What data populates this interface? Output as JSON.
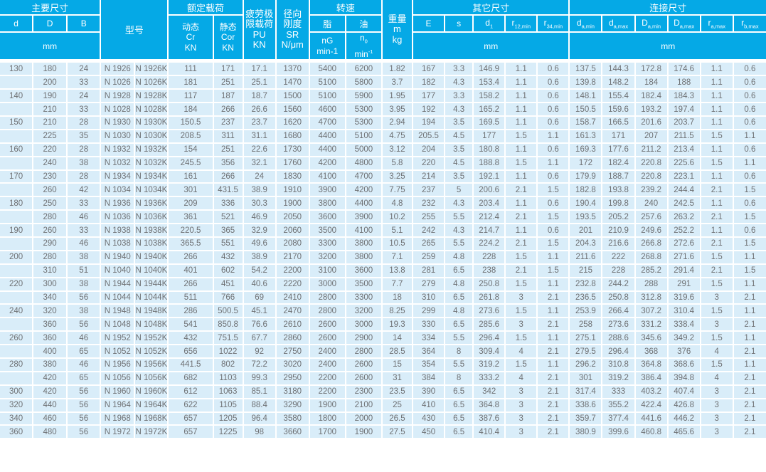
{
  "colors": {
    "header_bg": "#05a9e6",
    "header_text": "#ffffff",
    "row_bg": "#d9edf9",
    "body_text": "#6e7073",
    "gridline": "#ffffff"
  },
  "table": {
    "header": {
      "main_group": "主要尺寸",
      "d": "d",
      "D": "D",
      "B": "B",
      "mm": "mm",
      "model": "型号",
      "load_group": "额定载荷",
      "dyn": [
        "动态",
        "Cr",
        "KN"
      ],
      "stat": [
        "静态",
        "Cor",
        "KN"
      ],
      "fatigue": [
        "疲劳极",
        "限载荷",
        "PU",
        "KN"
      ],
      "stiffness": [
        "径向",
        "刚度",
        "SR",
        "N/μm"
      ],
      "speed_group": "转速",
      "grease": "脂",
      "oil": "油",
      "ng": [
        "nG",
        "min-1"
      ],
      "n0": {
        "base": "n",
        "sub": "0",
        "unit": "min",
        "sup": "-1"
      },
      "weight": [
        "重量",
        "m",
        "kg"
      ],
      "other_group": "其它尺寸",
      "e": "E",
      "s": "s",
      "d1": {
        "base": "d",
        "sub": "1"
      },
      "r12": {
        "base": "r",
        "sub": "12,min"
      },
      "r34": {
        "base": "r",
        "sub": "34,min"
      },
      "connect_group": "连接尺寸",
      "da_min": {
        "base": "d",
        "sub": "a,min"
      },
      "da_max": {
        "base": "d",
        "sub": "a,max"
      },
      "Da_min": {
        "base": "D",
        "sub": "a,min"
      },
      "Da_max": {
        "base": "D",
        "sub": "a,max"
      },
      "ra_max": {
        "base": "r",
        "sub": "a,max"
      },
      "rb_max": {
        "base": "r",
        "sub": "b,max"
      }
    },
    "rows": [
      [
        "130",
        "180",
        "24",
        "N 1926",
        "N 1926K",
        "111",
        "171",
        "17.1",
        "1370",
        "5400",
        "6200",
        "1.82",
        "167",
        "3.3",
        "146.9",
        "1.1",
        "0.6",
        "137.5",
        "144.3",
        "172.8",
        "174.6",
        "1.1",
        "0.6"
      ],
      [
        "",
        "200",
        "33",
        "N 1026",
        "N 1026K",
        "181",
        "251",
        "25.1",
        "1470",
        "5100",
        "5800",
        "3.7",
        "182",
        "4.3",
        "153.4",
        "1.1",
        "0.6",
        "139.8",
        "148.2",
        "184",
        "188",
        "1.1",
        "0.6"
      ],
      [
        "140",
        "190",
        "24",
        "N 1928",
        "N 1928K",
        "117",
        "187",
        "18.7",
        "1500",
        "5100",
        "5900",
        "1.95",
        "177",
        "3.3",
        "158.2",
        "1.1",
        "0.6",
        "148.1",
        "155.4",
        "182.4",
        "184.3",
        "1.1",
        "0.6"
      ],
      [
        "",
        "210",
        "33",
        "N 1028",
        "N 1028K",
        "184",
        "266",
        "26.6",
        "1560",
        "4600",
        "5300",
        "3.95",
        "192",
        "4.3",
        "165.2",
        "1.1",
        "0.6",
        "150.5",
        "159.6",
        "193.2",
        "197.4",
        "1.1",
        "0.6"
      ],
      [
        "150",
        "210",
        "28",
        "N 1930",
        "N 1930K",
        "150.5",
        "237",
        "23.7",
        "1620",
        "4700",
        "5300",
        "2.94",
        "194",
        "3.5",
        "169.5",
        "1.1",
        "0.6",
        "158.7",
        "166.5",
        "201.6",
        "203.7",
        "1.1",
        "0.6"
      ],
      [
        "",
        "225",
        "35",
        "N 1030",
        "N 1030K",
        "208.5",
        "311",
        "31.1",
        "1680",
        "4400",
        "5100",
        "4.75",
        "205.5",
        "4.5",
        "177",
        "1.5",
        "1.1",
        "161.3",
        "171",
        "207",
        "211.5",
        "1.5",
        "1.1"
      ],
      [
        "160",
        "220",
        "28",
        "N 1932",
        "N 1932K",
        "154",
        "251",
        "22.6",
        "1730",
        "4400",
        "5000",
        "3.12",
        "204",
        "3.5",
        "180.8",
        "1.1",
        "0.6",
        "169.3",
        "177.6",
        "211.2",
        "213.4",
        "1.1",
        "0.6"
      ],
      [
        "",
        "240",
        "38",
        "N 1032",
        "N 1032K",
        "245.5",
        "356",
        "32.1",
        "1760",
        "4200",
        "4800",
        "5.8",
        "220",
        "4.5",
        "188.8",
        "1.5",
        "1.1",
        "172",
        "182.4",
        "220.8",
        "225.6",
        "1.5",
        "1.1"
      ],
      [
        "170",
        "230",
        "28",
        "N 1934",
        "N 1934K",
        "161",
        "266",
        "24",
        "1830",
        "4100",
        "4700",
        "3.25",
        "214",
        "3.5",
        "192.1",
        "1.1",
        "0.6",
        "179.9",
        "188.7",
        "220.8",
        "223.1",
        "1.1",
        "0.6"
      ],
      [
        "",
        "260",
        "42",
        "N 1034",
        "N 1034K",
        "301",
        "431.5",
        "38.9",
        "1910",
        "3900",
        "4200",
        "7.75",
        "237",
        "5",
        "200.6",
        "2.1",
        "1.5",
        "182.8",
        "193.8",
        "239.2",
        "244.4",
        "2.1",
        "1.5"
      ],
      [
        "180",
        "250",
        "33",
        "N 1936",
        "N 1936K",
        "209",
        "336",
        "30.3",
        "1900",
        "3800",
        "4400",
        "4.8",
        "232",
        "4.3",
        "203.4",
        "1.1",
        "0.6",
        "190.4",
        "199.8",
        "240",
        "242.5",
        "1.1",
        "0.6"
      ],
      [
        "",
        "280",
        "46",
        "N 1036",
        "N 1036K",
        "361",
        "521",
        "46.9",
        "2050",
        "3600",
        "3900",
        "10.2",
        "255",
        "5.5",
        "212.4",
        "2.1",
        "1.5",
        "193.5",
        "205.2",
        "257.6",
        "263.2",
        "2.1",
        "1.5"
      ],
      [
        "190",
        "260",
        "33",
        "N 1938",
        "N 1938K",
        "220.5",
        "365",
        "32.9",
        "2060",
        "3500",
        "4100",
        "5.1",
        "242",
        "4.3",
        "214.7",
        "1.1",
        "0.6",
        "201",
        "210.9",
        "249.6",
        "252.2",
        "1.1",
        "0.6"
      ],
      [
        "",
        "290",
        "46",
        "N 1038",
        "N 1038K",
        "365.5",
        "551",
        "49.6",
        "2080",
        "3300",
        "3800",
        "10.5",
        "265",
        "5.5",
        "224.2",
        "2.1",
        "1.5",
        "204.3",
        "216.6",
        "266.8",
        "272.6",
        "2.1",
        "1.5"
      ],
      [
        "200",
        "280",
        "38",
        "N 1940",
        "N 1940K",
        "266",
        "432",
        "38.9",
        "2170",
        "3200",
        "3800",
        "7.1",
        "259",
        "4.8",
        "228",
        "1.5",
        "1.1",
        "211.6",
        "222",
        "268.8",
        "271.6",
        "1.5",
        "1.1"
      ],
      [
        "",
        "310",
        "51",
        "N 1040",
        "N 1040K",
        "401",
        "602",
        "54.2",
        "2200",
        "3100",
        "3600",
        "13.8",
        "281",
        "6.5",
        "238",
        "2.1",
        "1.5",
        "215",
        "228",
        "285.2",
        "291.4",
        "2.1",
        "1.5"
      ],
      [
        "220",
        "300",
        "38",
        "N 1944",
        "N 1944K",
        "266",
        "451",
        "40.6",
        "2220",
        "3000",
        "3500",
        "7.7",
        "279",
        "4.8",
        "250.8",
        "1.5",
        "1.1",
        "232.8",
        "244.2",
        "288",
        "291",
        "1.5",
        "1.1"
      ],
      [
        "",
        "340",
        "56",
        "N 1044",
        "N 1044K",
        "511",
        "766",
        "69",
        "2410",
        "2800",
        "3300",
        "18",
        "310",
        "6.5",
        "261.8",
        "3",
        "2.1",
        "236.5",
        "250.8",
        "312.8",
        "319.6",
        "3",
        "2.1"
      ],
      [
        "240",
        "320",
        "38",
        "N 1948",
        "N 1948K",
        "286",
        "500.5",
        "45.1",
        "2470",
        "2800",
        "3200",
        "8.25",
        "299",
        "4.8",
        "273.6",
        "1.5",
        "1.1",
        "253.9",
        "266.4",
        "307.2",
        "310.4",
        "1.5",
        "1.1"
      ],
      [
        "",
        "360",
        "56",
        "N 1048",
        "N 1048K",
        "541",
        "850.8",
        "76.6",
        "2610",
        "2600",
        "3000",
        "19.3",
        "330",
        "6.5",
        "285.6",
        "3",
        "2.1",
        "258",
        "273.6",
        "331.2",
        "338.4",
        "3",
        "2.1"
      ],
      [
        "260",
        "360",
        "46",
        "N 1952",
        "N 1952K",
        "432",
        "751.5",
        "67.7",
        "2860",
        "2600",
        "2900",
        "14",
        "334",
        "5.5",
        "296.4",
        "1.5",
        "1.1",
        "275.1",
        "288.6",
        "345.6",
        "349.2",
        "1.5",
        "1.1"
      ],
      [
        "",
        "400",
        "65",
        "N 1052",
        "N 1052K",
        "656",
        "1022",
        "92",
        "2750",
        "2400",
        "2800",
        "28.5",
        "364",
        "8",
        "309.4",
        "4",
        "2.1",
        "279.5",
        "296.4",
        "368",
        "376",
        "4",
        "2.1"
      ],
      [
        "280",
        "380",
        "46",
        "N 1956",
        "N 1956K",
        "441.5",
        "802",
        "72.2",
        "3020",
        "2400",
        "2600",
        "15",
        "354",
        "5.5",
        "319.2",
        "1.5",
        "1.1",
        "296.2",
        "310.8",
        "364.8",
        "368.6",
        "1.5",
        "1.1"
      ],
      [
        "",
        "420",
        "65",
        "N 1056",
        "N 1056K",
        "682",
        "1103",
        "99.3",
        "2950",
        "2200",
        "2600",
        "31",
        "384",
        "8",
        "333.2",
        "4",
        "2.1",
        "301",
        "319.2",
        "386.4",
        "394.8",
        "4",
        "2.1"
      ],
      [
        "300",
        "420",
        "56",
        "N 1960",
        "N 1960K",
        "612",
        "1063",
        "85.1",
        "3180",
        "2200",
        "2300",
        "23.5",
        "390",
        "6.5",
        "342",
        "3",
        "2.1",
        "317.4",
        "333",
        "403.2",
        "407.4",
        "3",
        "2.1"
      ],
      [
        "320",
        "440",
        "56",
        "N 1964",
        "N 1964K",
        "622",
        "1105",
        "88.4",
        "3290",
        "1900",
        "2100",
        "25",
        "410",
        "6.5",
        "364.8",
        "3",
        "2.1",
        "338.6",
        "355.2",
        "422.4",
        "426.8",
        "3",
        "2.1"
      ],
      [
        "340",
        "460",
        "56",
        "N 1968",
        "N 1968K",
        "657",
        "1205",
        "96.4",
        "3580",
        "1800",
        "2000",
        "26.5",
        "430",
        "6.5",
        "387.6",
        "3",
        "2.1",
        "359.7",
        "377.4",
        "441.6",
        "446.2",
        "3",
        "2.1"
      ],
      [
        "360",
        "480",
        "56",
        "N 1972",
        "N 1972K",
        "657",
        "1225",
        "98",
        "3660",
        "1700",
        "1900",
        "27.5",
        "450",
        "6.5",
        "410.4",
        "3",
        "2.1",
        "380.9",
        "399.6",
        "460.8",
        "465.6",
        "3",
        "2.1"
      ]
    ]
  }
}
